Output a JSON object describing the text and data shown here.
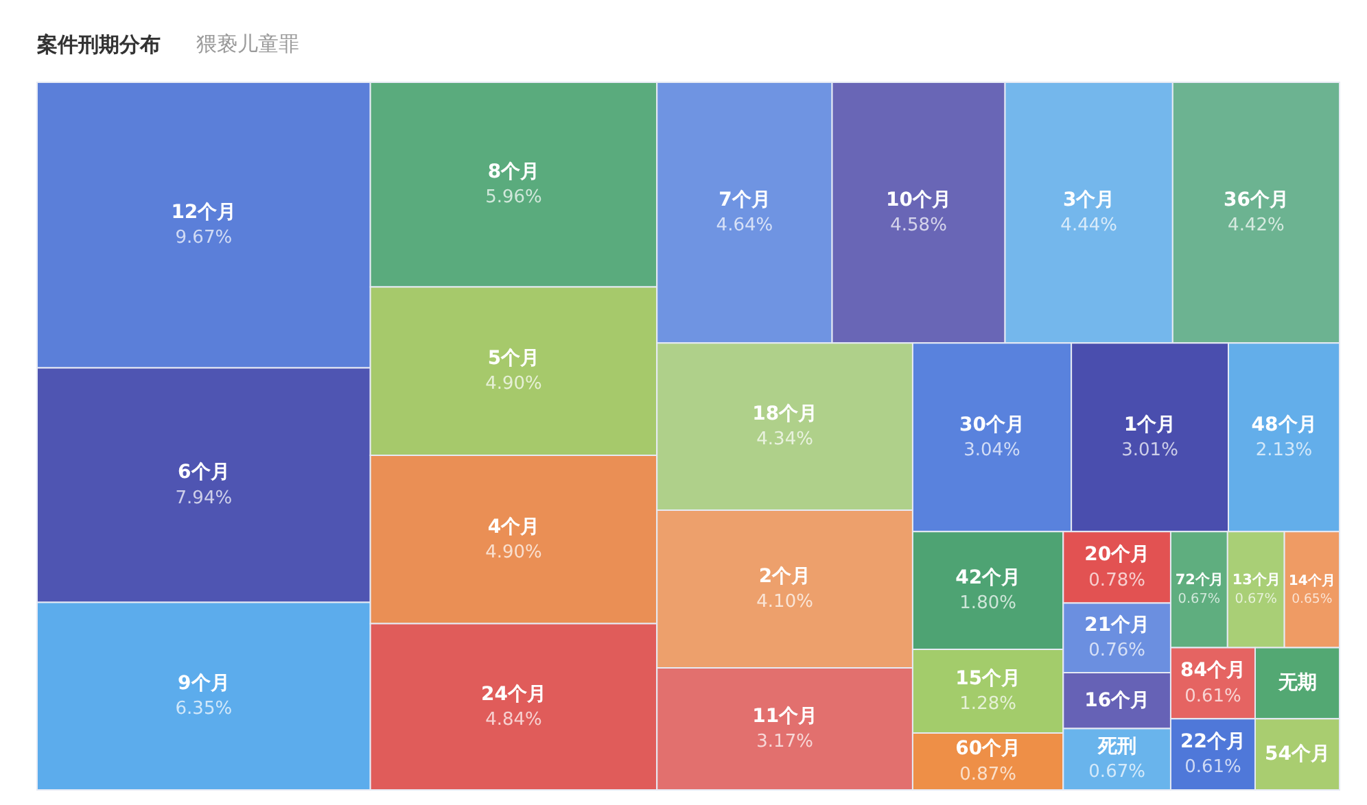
{
  "chart_data": {
    "type": "other",
    "title": "案件刑期分布",
    "subtitle": "猥亵儿童罪",
    "categories": [
      "12个月",
      "6个月",
      "9个月",
      "8个月",
      "5个月",
      "4个月",
      "24个月",
      "7个月",
      "10个月",
      "3个月",
      "36个月",
      "18个月",
      "2个月",
      "11个月",
      "30个月",
      "1个月",
      "48个月",
      "42个月",
      "15个月",
      "60个月",
      "20个月",
      "21个月",
      "16个月",
      "死刑",
      "72个月",
      "13个月",
      "14个月",
      "84个月",
      "22个月",
      "无期",
      "54个月"
    ],
    "values": [
      9.67,
      7.94,
      6.35,
      5.96,
      4.9,
      4.9,
      4.84,
      4.64,
      4.58,
      4.44,
      4.42,
      4.34,
      4.1,
      3.17,
      3.04,
      3.01,
      2.13,
      1.8,
      1.28,
      0.87,
      0.78,
      0.76,
      null,
      0.67,
      0.67,
      0.67,
      0.65,
      0.61,
      0.61,
      null,
      null
    ],
    "value_labels": [
      "9.67%",
      "7.94%",
      "6.35%",
      "5.96%",
      "4.90%",
      "4.90%",
      "4.84%",
      "4.64%",
      "4.58%",
      "4.44%",
      "4.42%",
      "4.34%",
      "4.10%",
      "3.17%",
      "3.04%",
      "3.01%",
      "2.13%",
      "1.80%",
      "1.28%",
      "0.87%",
      "0.78%",
      "0.76%",
      null,
      "0.67%",
      "0.67%",
      "0.67%",
      "0.65%",
      "0.61%",
      "0.61%",
      null,
      null
    ],
    "colors": [
      "#5b7fd9",
      "#4f55b2",
      "#5cacec",
      "#5aab7d",
      "#a6c96b",
      "#ea8f55",
      "#e05c5a",
      "#6f94e2",
      "#6966b6",
      "#74b7ec",
      "#6cb391",
      "#afd08a",
      "#eda06c",
      "#e2706e",
      "#5982dd",
      "#4a4eae",
      "#63aeea",
      "#4ea373",
      "#a3cc6b",
      "#ee8f47",
      "#e25252",
      "#6b8fe0",
      "#6662b6",
      "#69b4ec",
      "#5fae7f",
      "#a9cf76",
      "#ef9b64",
      "#e56462",
      "#4f78d9",
      "#53a873",
      "#a9cd70"
    ]
  }
}
